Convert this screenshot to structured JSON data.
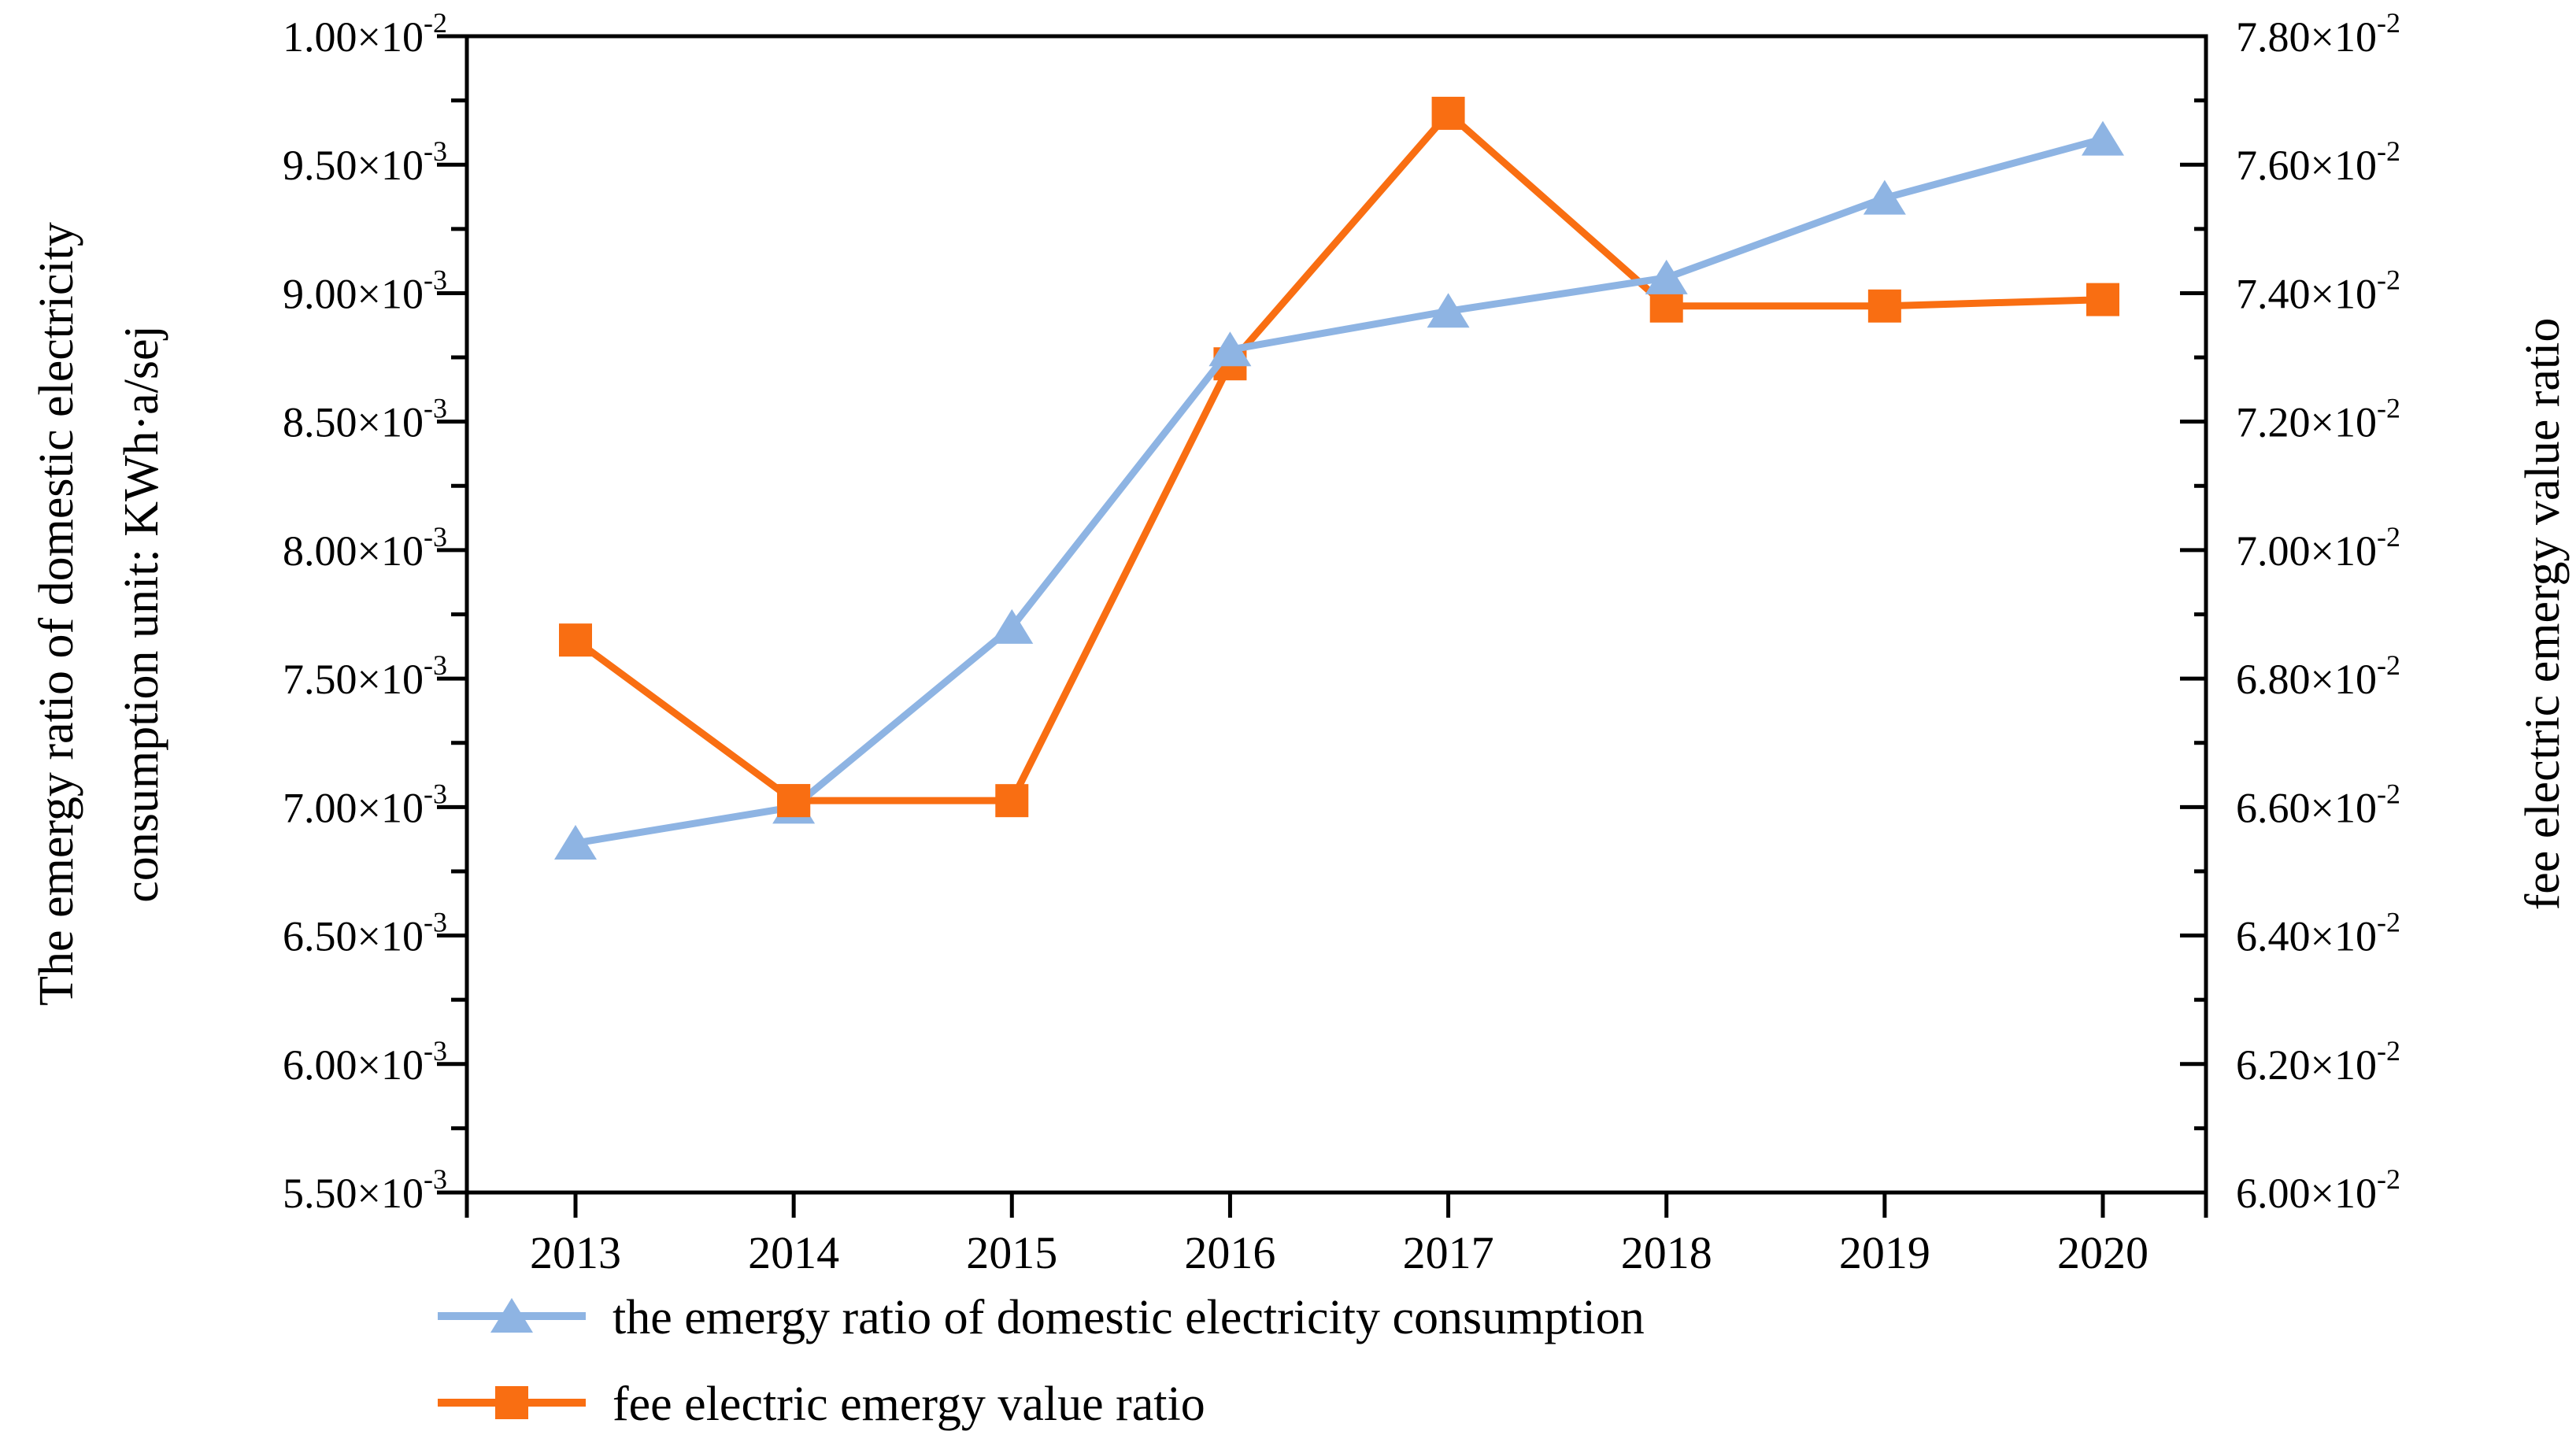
{
  "chart_data": {
    "type": "line",
    "title": "",
    "categories": [
      "2013",
      "2014",
      "2015",
      "2016",
      "2017",
      "2018",
      "2019",
      "2020"
    ],
    "series": [
      {
        "name": "the emergy ratio of domestic electricity consumption",
        "axis": "left",
        "color": "#8EB4E3",
        "marker": "triangle",
        "unit_scale": 0.001,
        "values": [
          6.86,
          7.0,
          7.7,
          8.78,
          8.93,
          9.06,
          9.37,
          9.6
        ]
      },
      {
        "name": "fee electric emergy value ratio",
        "axis": "right",
        "color": "#F96E12",
        "marker": "square",
        "unit_scale": 0.01,
        "values": [
          6.86,
          6.61,
          6.61,
          7.29,
          7.68,
          7.38,
          7.38,
          7.39
        ]
      }
    ],
    "left_axis": {
      "title_line1": "The emergy ratio of domestic electricity",
      "title_line2": "consumption unit: KWh·a/sej",
      "min": 5.5,
      "max": 10.0,
      "unit_scale": 0.001,
      "tick_labels": [
        "1.00×10^-2",
        "9.50×10^-3",
        "9.00×10^-3",
        "8.50×10^-3",
        "8.00×10^-3",
        "7.50×10^-3",
        "7.00×10^-3",
        "6.50×10^-3",
        "6.00×10^-3",
        "5.50×10^-3"
      ]
    },
    "right_axis": {
      "title": "fee electric emergy value ratio",
      "min": 6.0,
      "max": 7.8,
      "unit_scale": 0.01,
      "tick_labels": [
        "7.80×10^-2",
        "7.60×10^-2",
        "7.40×10^-2",
        "7.20×10^-2",
        "7.00×10^-2",
        "6.80×10^-2",
        "6.60×10^-2",
        "6.40×10^-2",
        "6.20×10^-2",
        "6.00×10^-2"
      ]
    },
    "x_axis": {
      "labels": [
        "2013",
        "2014",
        "2015",
        "2016",
        "2017",
        "2018",
        "2019",
        "2020"
      ]
    },
    "legend": {
      "position": "bottom-left",
      "entries": [
        "the emergy ratio of domestic electricity consumption",
        "fee electric emergy value ratio"
      ]
    },
    "grid": false
  },
  "colors": {
    "axis": "#000000",
    "background": "#ffffff",
    "series_blue": "#8EB4E3",
    "series_orange": "#F96E12"
  }
}
